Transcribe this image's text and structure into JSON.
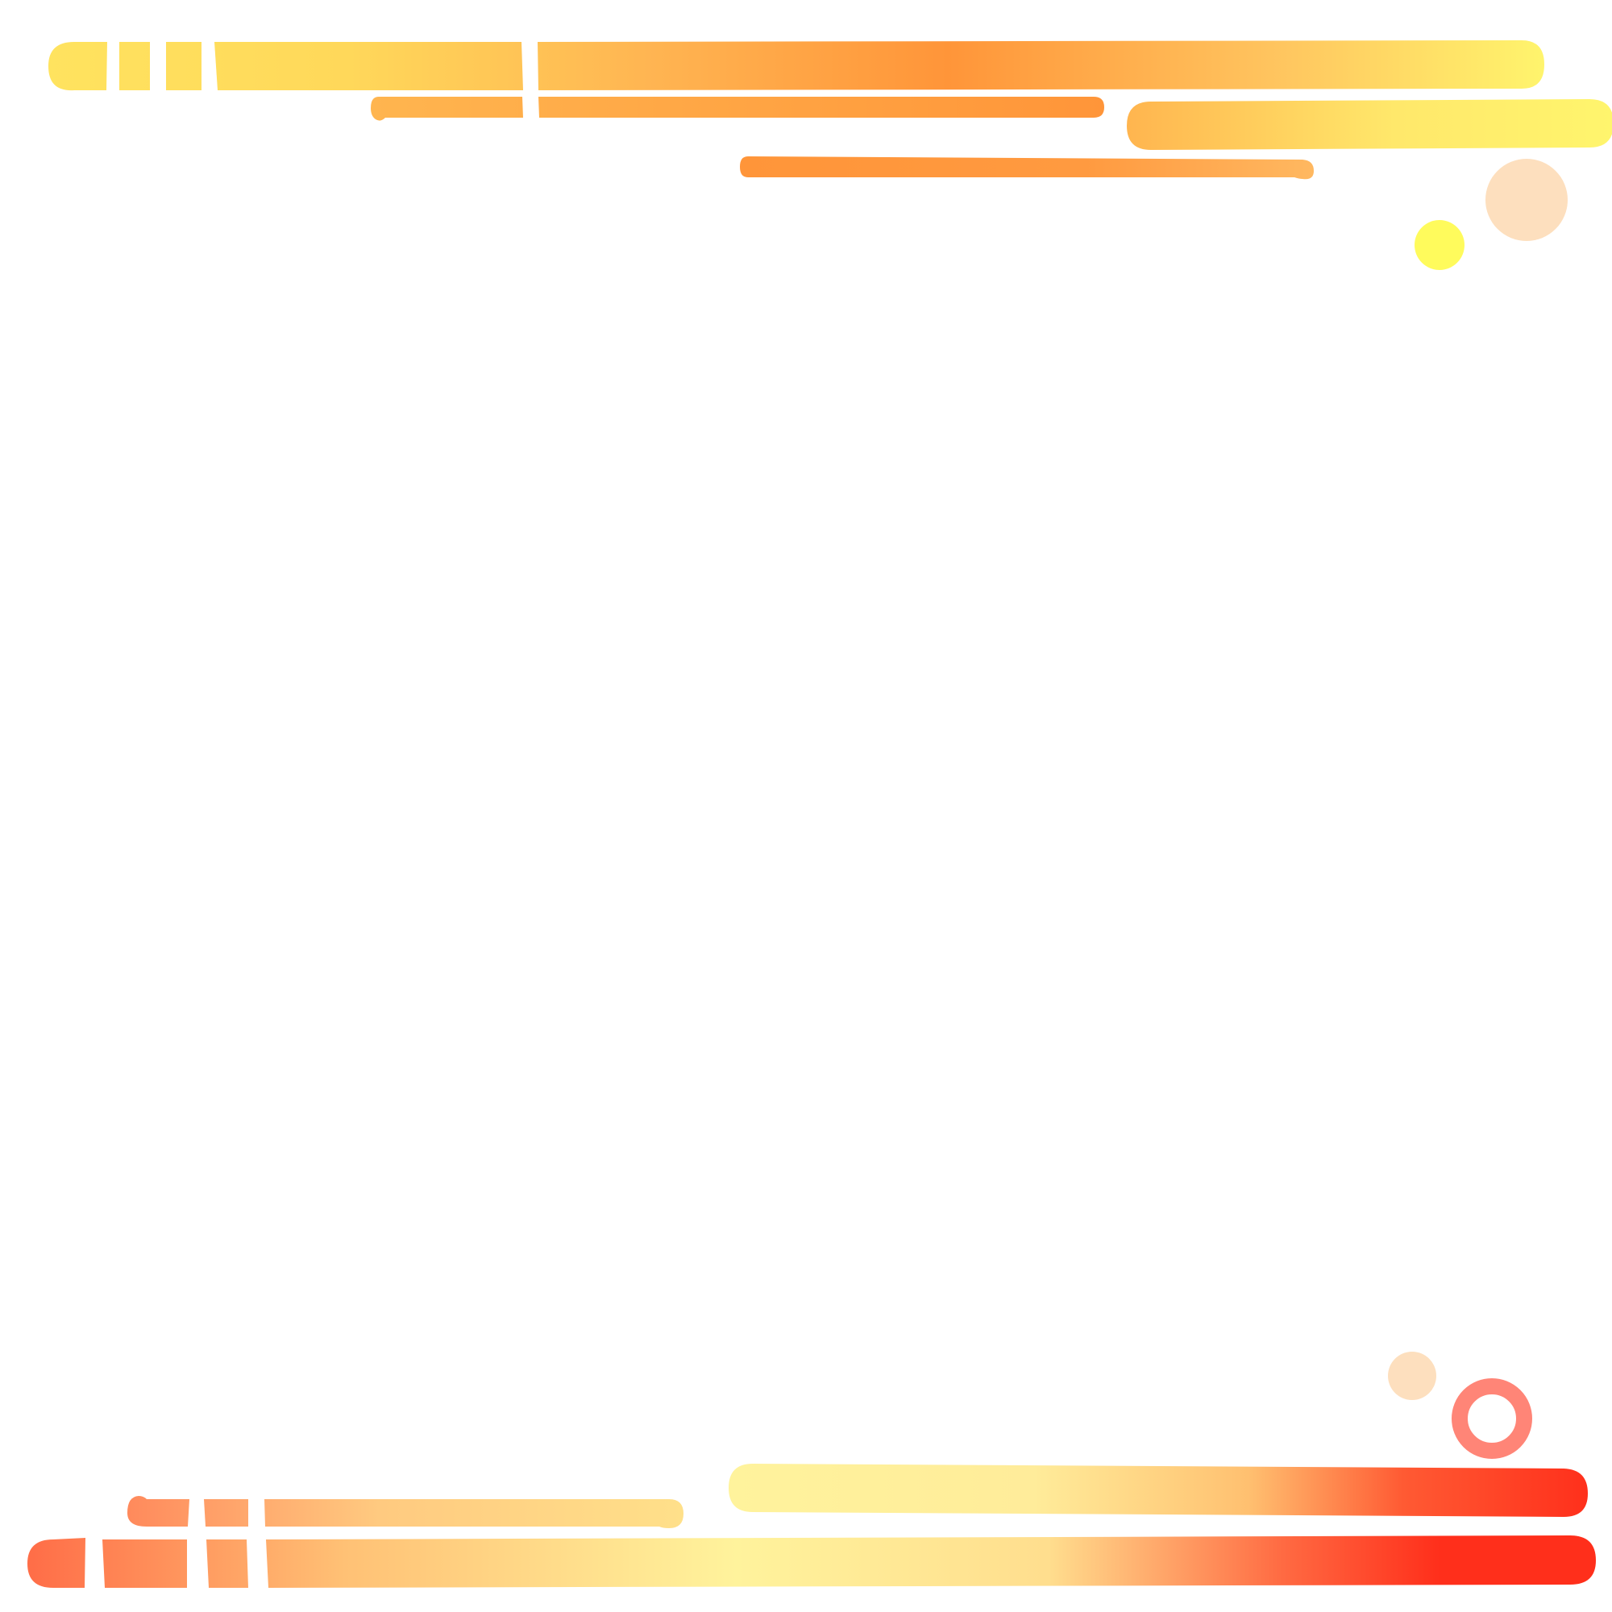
{
  "palette": {
    "warm_yellow": "#FFE35F",
    "orange": "#FF9539",
    "pale_yellow": "#FFF56D",
    "peach": "#FDDFBE",
    "lemon": "#FFFB5C",
    "salmon": "#FF8577",
    "coral": "#FF6E48",
    "cream": "#FFF39C",
    "red": "#FF2F1B",
    "background": "#FFFFFF"
  },
  "decorations": {
    "top": "gradient-stripe-group",
    "bottom": "gradient-stripe-group"
  }
}
